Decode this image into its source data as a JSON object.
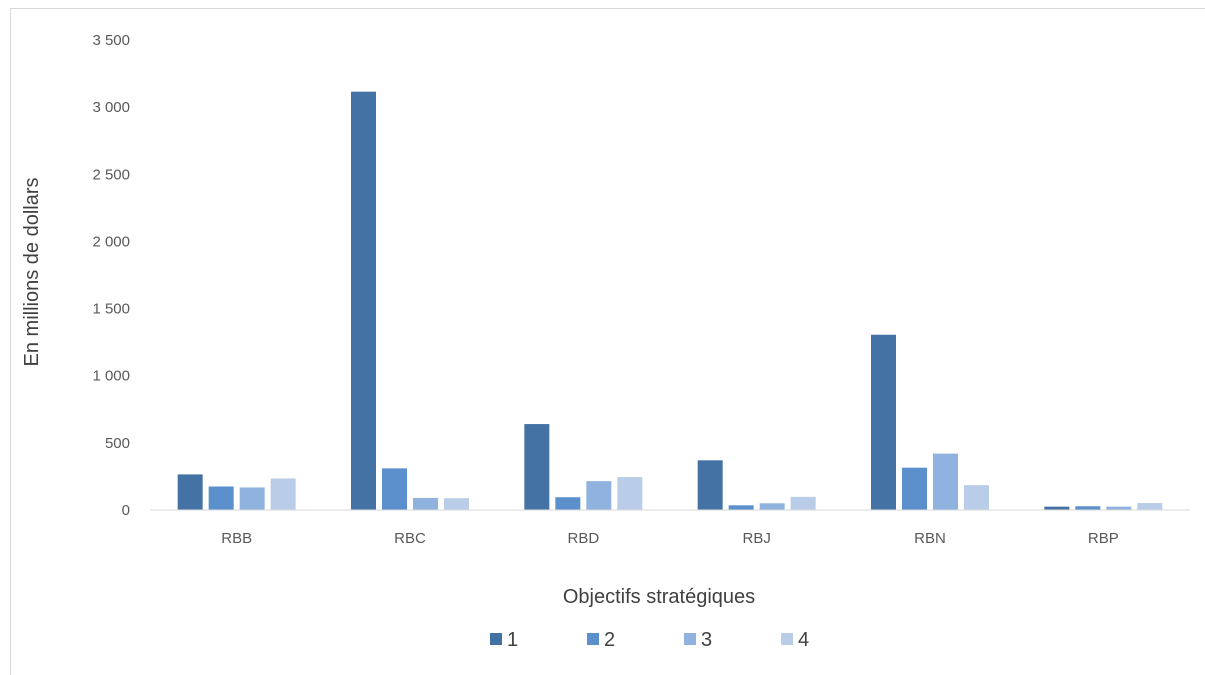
{
  "chart_data": {
    "type": "bar",
    "title": "",
    "xlabel": "Objectifs stratégiques",
    "ylabel": "En millions de dollars",
    "ylim": [
      0,
      3500
    ],
    "y_ticks": [
      0,
      500,
      1000,
      1500,
      2000,
      2500,
      3000,
      3500
    ],
    "y_tick_labels": [
      "0",
      "500",
      "1 000",
      "1 500",
      "2 000",
      "2 500",
      "3 000",
      "3 500"
    ],
    "grid": false,
    "legend_position": "bottom",
    "categories": [
      "RBB",
      "RBC",
      "RBD",
      "RBJ",
      "RBN",
      "RBP"
    ],
    "series": [
      {
        "name": "1",
        "color": "#4472a4",
        "values": [
          265,
          3115,
          640,
          370,
          1305,
          25
        ]
      },
      {
        "name": "2",
        "color": "#5b90cc",
        "values": [
          175,
          310,
          95,
          35,
          315,
          28
        ]
      },
      {
        "name": "3",
        "color": "#8fb2df",
        "values": [
          168,
          90,
          215,
          50,
          420,
          25
        ]
      },
      {
        "name": "4",
        "color": "#b9cde9",
        "values": [
          235,
          88,
          245,
          98,
          185,
          52
        ]
      }
    ]
  }
}
